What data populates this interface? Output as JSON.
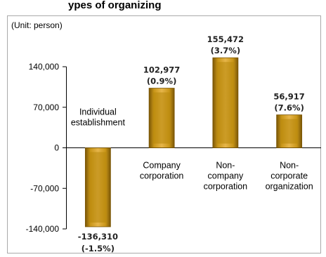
{
  "header": {
    "title_fragment": "ypes of organizing",
    "unit_label": "(Unit: person)"
  },
  "colors": {
    "bar_base": "#b7860b",
    "bar_light": "#e6b54a",
    "bar_dark": "#7a5606",
    "frame": "#a9a9a9"
  },
  "chart_data": {
    "type": "bar",
    "categories": [
      "Individual establishment",
      "Company corporation",
      "Non-company corporation",
      "Non-corporate organization"
    ],
    "category_label_lines": [
      [
        "Individual",
        "establishment"
      ],
      [
        "Company",
        "corporation"
      ],
      [
        "Non-",
        "company",
        "corporation"
      ],
      [
        "Non-",
        "corporate",
        "organization"
      ]
    ],
    "values": [
      -136310,
      102977,
      155472,
      56917
    ],
    "value_labels": [
      "-136,310",
      "102,977",
      "155,472",
      "56,917"
    ],
    "percent_labels": [
      "(-1.5%)",
      "(0.9%)",
      "(3.7%)",
      "(7.6%)"
    ],
    "ylim": [
      -140000,
      140000
    ],
    "yticks": [
      140000,
      70000,
      0,
      -70000,
      -140000
    ],
    "ytick_labels": [
      "140,000",
      "70,000",
      "0",
      "-70,000",
      "-140,000"
    ],
    "ylabel": "(Unit: person)",
    "xlabel": "",
    "grid": false,
    "legend": "none"
  }
}
